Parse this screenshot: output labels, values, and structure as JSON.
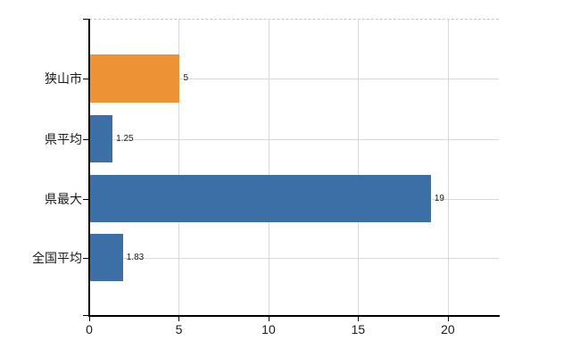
{
  "chart_data": {
    "type": "bar",
    "orientation": "horizontal",
    "categories": [
      "狭山市",
      "県平均",
      "県最大",
      "全国平均"
    ],
    "values": [
      5,
      1.25,
      19,
      1.83
    ],
    "value_labels": [
      "5",
      "1.25",
      "19",
      "1.83"
    ],
    "bar_colors": [
      "#EE9335",
      "#3C6FA6",
      "#3C6FA6",
      "#3C6FA6"
    ],
    "x_ticks": [
      0,
      5,
      10,
      15,
      20
    ],
    "x_tick_labels": [
      "0",
      "5",
      "10",
      "15",
      "20"
    ],
    "xlim": [
      0,
      22.84
    ],
    "grid": true,
    "legend": false
  },
  "colors": {
    "bar_orange": "#EE9335",
    "bar_blue": "#3C6FA6",
    "gridline": "#d9d9d9",
    "plot_top_border": "#c6c6c6",
    "axis": "#000000",
    "text": "#1a1a1a",
    "background": "#ffffff"
  }
}
